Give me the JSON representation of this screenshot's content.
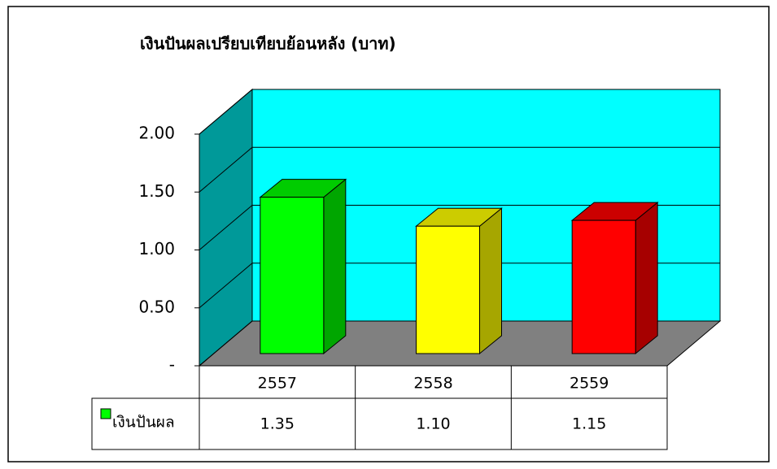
{
  "chart_data": {
    "type": "bar3d",
    "title": "เงินปันผลเปรียบเทียบย้อนหลัง  (บาท)",
    "categories": [
      "2557",
      "2558",
      "2559"
    ],
    "series": [
      {
        "name": "เงินปันผล",
        "color": "#00ff00",
        "colors": [
          "#00ff00",
          "#ffff00",
          "#ff0000"
        ],
        "values": [
          1.35,
          1.1,
          1.15
        ],
        "value_labels": [
          "1.35",
          "1.10",
          "1.15"
        ]
      }
    ],
    "ylim": [
      0,
      2
    ],
    "yticks": [
      {
        "value": 0,
        "label": "-"
      },
      {
        "value": 0.5,
        "label": "0.50"
      },
      {
        "value": 1,
        "label": "1.00"
      },
      {
        "value": 1.5,
        "label": "1.50"
      },
      {
        "value": 2,
        "label": "2.00"
      }
    ],
    "grid": true
  }
}
